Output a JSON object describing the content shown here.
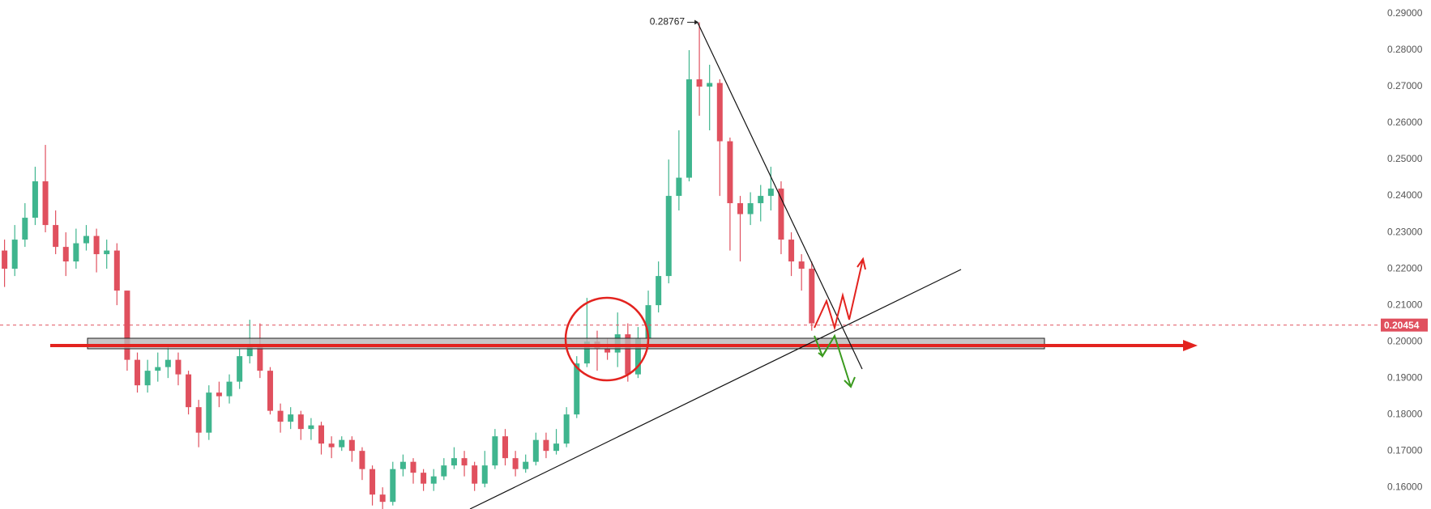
{
  "chart_data": {
    "type": "candlestick",
    "up_color": "#3fb58e",
    "down_color": "#e0505e",
    "ylim": [
      0.15404,
      0.29378
    ],
    "yticks": [
      {
        "value": 0.29,
        "label": "0.29000"
      },
      {
        "value": 0.28,
        "label": "0.28000"
      },
      {
        "value": 0.27,
        "label": "0.27000"
      },
      {
        "value": 0.26,
        "label": "0.26000"
      },
      {
        "value": 0.25,
        "label": "0.25000"
      },
      {
        "value": 0.24,
        "label": "0.24000"
      },
      {
        "value": 0.23,
        "label": "0.23000"
      },
      {
        "value": 0.22,
        "label": "0.22000"
      },
      {
        "value": 0.21,
        "label": "0.21000"
      },
      {
        "value": 0.2,
        "label": "0.20000"
      },
      {
        "value": 0.19,
        "label": "0.19000"
      },
      {
        "value": 0.18,
        "label": "0.18000"
      },
      {
        "value": 0.17,
        "label": "0.17000"
      },
      {
        "value": 0.16,
        "label": "0.16000"
      }
    ],
    "last_price": 0.20454,
    "high_label": 0.28767,
    "open": [
      0.225,
      0.22,
      0.228,
      0.234,
      0.244,
      0.232,
      0.226,
      0.222,
      0.227,
      0.229,
      0.224,
      0.225,
      0.214,
      0.195,
      0.188,
      0.192,
      0.193,
      0.195,
      0.191,
      0.182,
      0.175,
      0.186,
      0.185,
      0.189,
      0.196,
      0.199,
      0.192,
      0.181,
      0.178,
      0.18,
      0.176,
      0.177,
      0.172,
      0.171,
      0.173,
      0.17,
      0.165,
      0.158,
      0.156,
      0.165,
      0.167,
      0.164,
      0.161,
      0.163,
      0.166,
      0.168,
      0.166,
      0.161,
      0.166,
      0.174,
      0.168,
      0.165,
      0.167,
      0.173,
      0.17,
      0.172,
      0.18,
      0.194,
      0.2,
      0.198,
      0.197,
      0.202,
      0.191,
      0.201,
      0.21,
      0.218,
      0.24,
      0.245,
      0.272,
      0.27,
      0.271,
      0.255,
      0.238,
      0.235,
      0.238,
      0.24,
      0.242,
      0.228,
      0.222,
      0.22
    ],
    "high": [
      0.228,
      0.232,
      0.238,
      0.248,
      0.254,
      0.236,
      0.23,
      0.231,
      0.232,
      0.231,
      0.228,
      0.227,
      0.214,
      0.197,
      0.195,
      0.197,
      0.199,
      0.197,
      0.192,
      0.184,
      0.188,
      0.189,
      0.191,
      0.198,
      0.206,
      0.205,
      0.193,
      0.183,
      0.182,
      0.181,
      0.179,
      0.178,
      0.174,
      0.174,
      0.174,
      0.171,
      0.166,
      0.16,
      0.167,
      0.169,
      0.168,
      0.165,
      0.165,
      0.168,
      0.171,
      0.17,
      0.167,
      0.17,
      0.176,
      0.176,
      0.17,
      0.169,
      0.175,
      0.175,
      0.176,
      0.182,
      0.196,
      0.212,
      0.203,
      0.201,
      0.208,
      0.205,
      0.204,
      0.214,
      0.222,
      0.25,
      0.258,
      0.28,
      0.28767,
      0.276,
      0.272,
      0.256,
      0.24,
      0.241,
      0.243,
      0.248,
      0.244,
      0.23,
      0.224,
      0.222
    ],
    "low": [
      0.215,
      0.218,
      0.226,
      0.232,
      0.23,
      0.224,
      0.218,
      0.22,
      0.225,
      0.219,
      0.22,
      0.21,
      0.192,
      0.186,
      0.186,
      0.189,
      0.19,
      0.188,
      0.18,
      0.171,
      0.173,
      0.182,
      0.183,
      0.187,
      0.194,
      0.19,
      0.18,
      0.175,
      0.176,
      0.173,
      0.173,
      0.169,
      0.168,
      0.17,
      0.167,
      0.162,
      0.155,
      0.154,
      0.155,
      0.163,
      0.161,
      0.159,
      0.159,
      0.162,
      0.165,
      0.163,
      0.159,
      0.16,
      0.165,
      0.166,
      0.163,
      0.164,
      0.166,
      0.168,
      0.169,
      0.171,
      0.179,
      0.193,
      0.192,
      0.195,
      0.193,
      0.189,
      0.19,
      0.199,
      0.208,
      0.216,
      0.236,
      0.244,
      0.262,
      0.258,
      0.24,
      0.225,
      0.222,
      0.232,
      0.233,
      0.236,
      0.224,
      0.218,
      0.214,
      0.203
    ],
    "close": [
      0.22,
      0.228,
      0.234,
      0.244,
      0.232,
      0.226,
      0.222,
      0.227,
      0.229,
      0.224,
      0.225,
      0.214,
      0.195,
      0.188,
      0.192,
      0.193,
      0.195,
      0.191,
      0.182,
      0.175,
      0.186,
      0.185,
      0.189,
      0.196,
      0.199,
      0.192,
      0.181,
      0.178,
      0.18,
      0.176,
      0.177,
      0.172,
      0.171,
      0.173,
      0.17,
      0.165,
      0.158,
      0.156,
      0.165,
      0.167,
      0.164,
      0.161,
      0.163,
      0.166,
      0.168,
      0.166,
      0.161,
      0.166,
      0.174,
      0.168,
      0.165,
      0.167,
      0.173,
      0.17,
      0.172,
      0.18,
      0.194,
      0.2,
      0.198,
      0.197,
      0.202,
      0.191,
      0.201,
      0.21,
      0.218,
      0.24,
      0.245,
      0.272,
      0.27,
      0.271,
      0.255,
      0.238,
      0.235,
      0.238,
      0.24,
      0.242,
      0.228,
      0.222,
      0.22,
      0.205
    ]
  }
}
